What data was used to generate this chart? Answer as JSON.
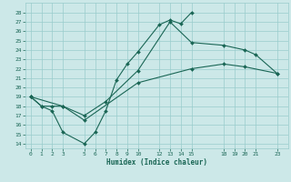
{
  "xlabel": "Humidex (Indice chaleur)",
  "background_color": "#cce8e8",
  "grid_color": "#99cccc",
  "line_color": "#1a6655",
  "xlim": [
    -0.5,
    24.0
  ],
  "ylim": [
    13.5,
    29.0
  ],
  "xticks": [
    0,
    1,
    2,
    3,
    5,
    6,
    7,
    8,
    9,
    10,
    12,
    13,
    14,
    15,
    18,
    19,
    20,
    21,
    23
  ],
  "yticks": [
    14,
    15,
    16,
    17,
    18,
    19,
    20,
    21,
    22,
    23,
    24,
    25,
    26,
    27,
    28
  ],
  "line1_x": [
    0,
    1,
    2,
    3,
    5,
    6,
    7,
    8,
    9,
    10,
    12,
    13,
    14,
    15
  ],
  "line1_y": [
    19.0,
    18.0,
    17.5,
    15.2,
    14.0,
    15.2,
    17.5,
    20.8,
    22.5,
    23.8,
    26.7,
    27.2,
    26.8,
    28.0
  ],
  "line2_x": [
    0,
    1,
    2,
    3,
    5,
    7,
    10,
    13,
    15,
    18,
    20,
    21,
    23
  ],
  "line2_y": [
    19.0,
    18.0,
    18.0,
    18.0,
    17.0,
    18.5,
    21.8,
    27.0,
    24.8,
    24.5,
    24.0,
    23.5,
    21.5
  ],
  "line3_x": [
    0,
    3,
    5,
    10,
    15,
    18,
    20,
    23
  ],
  "line3_y": [
    19.0,
    18.0,
    16.5,
    20.5,
    22.0,
    22.5,
    22.2,
    21.5
  ]
}
